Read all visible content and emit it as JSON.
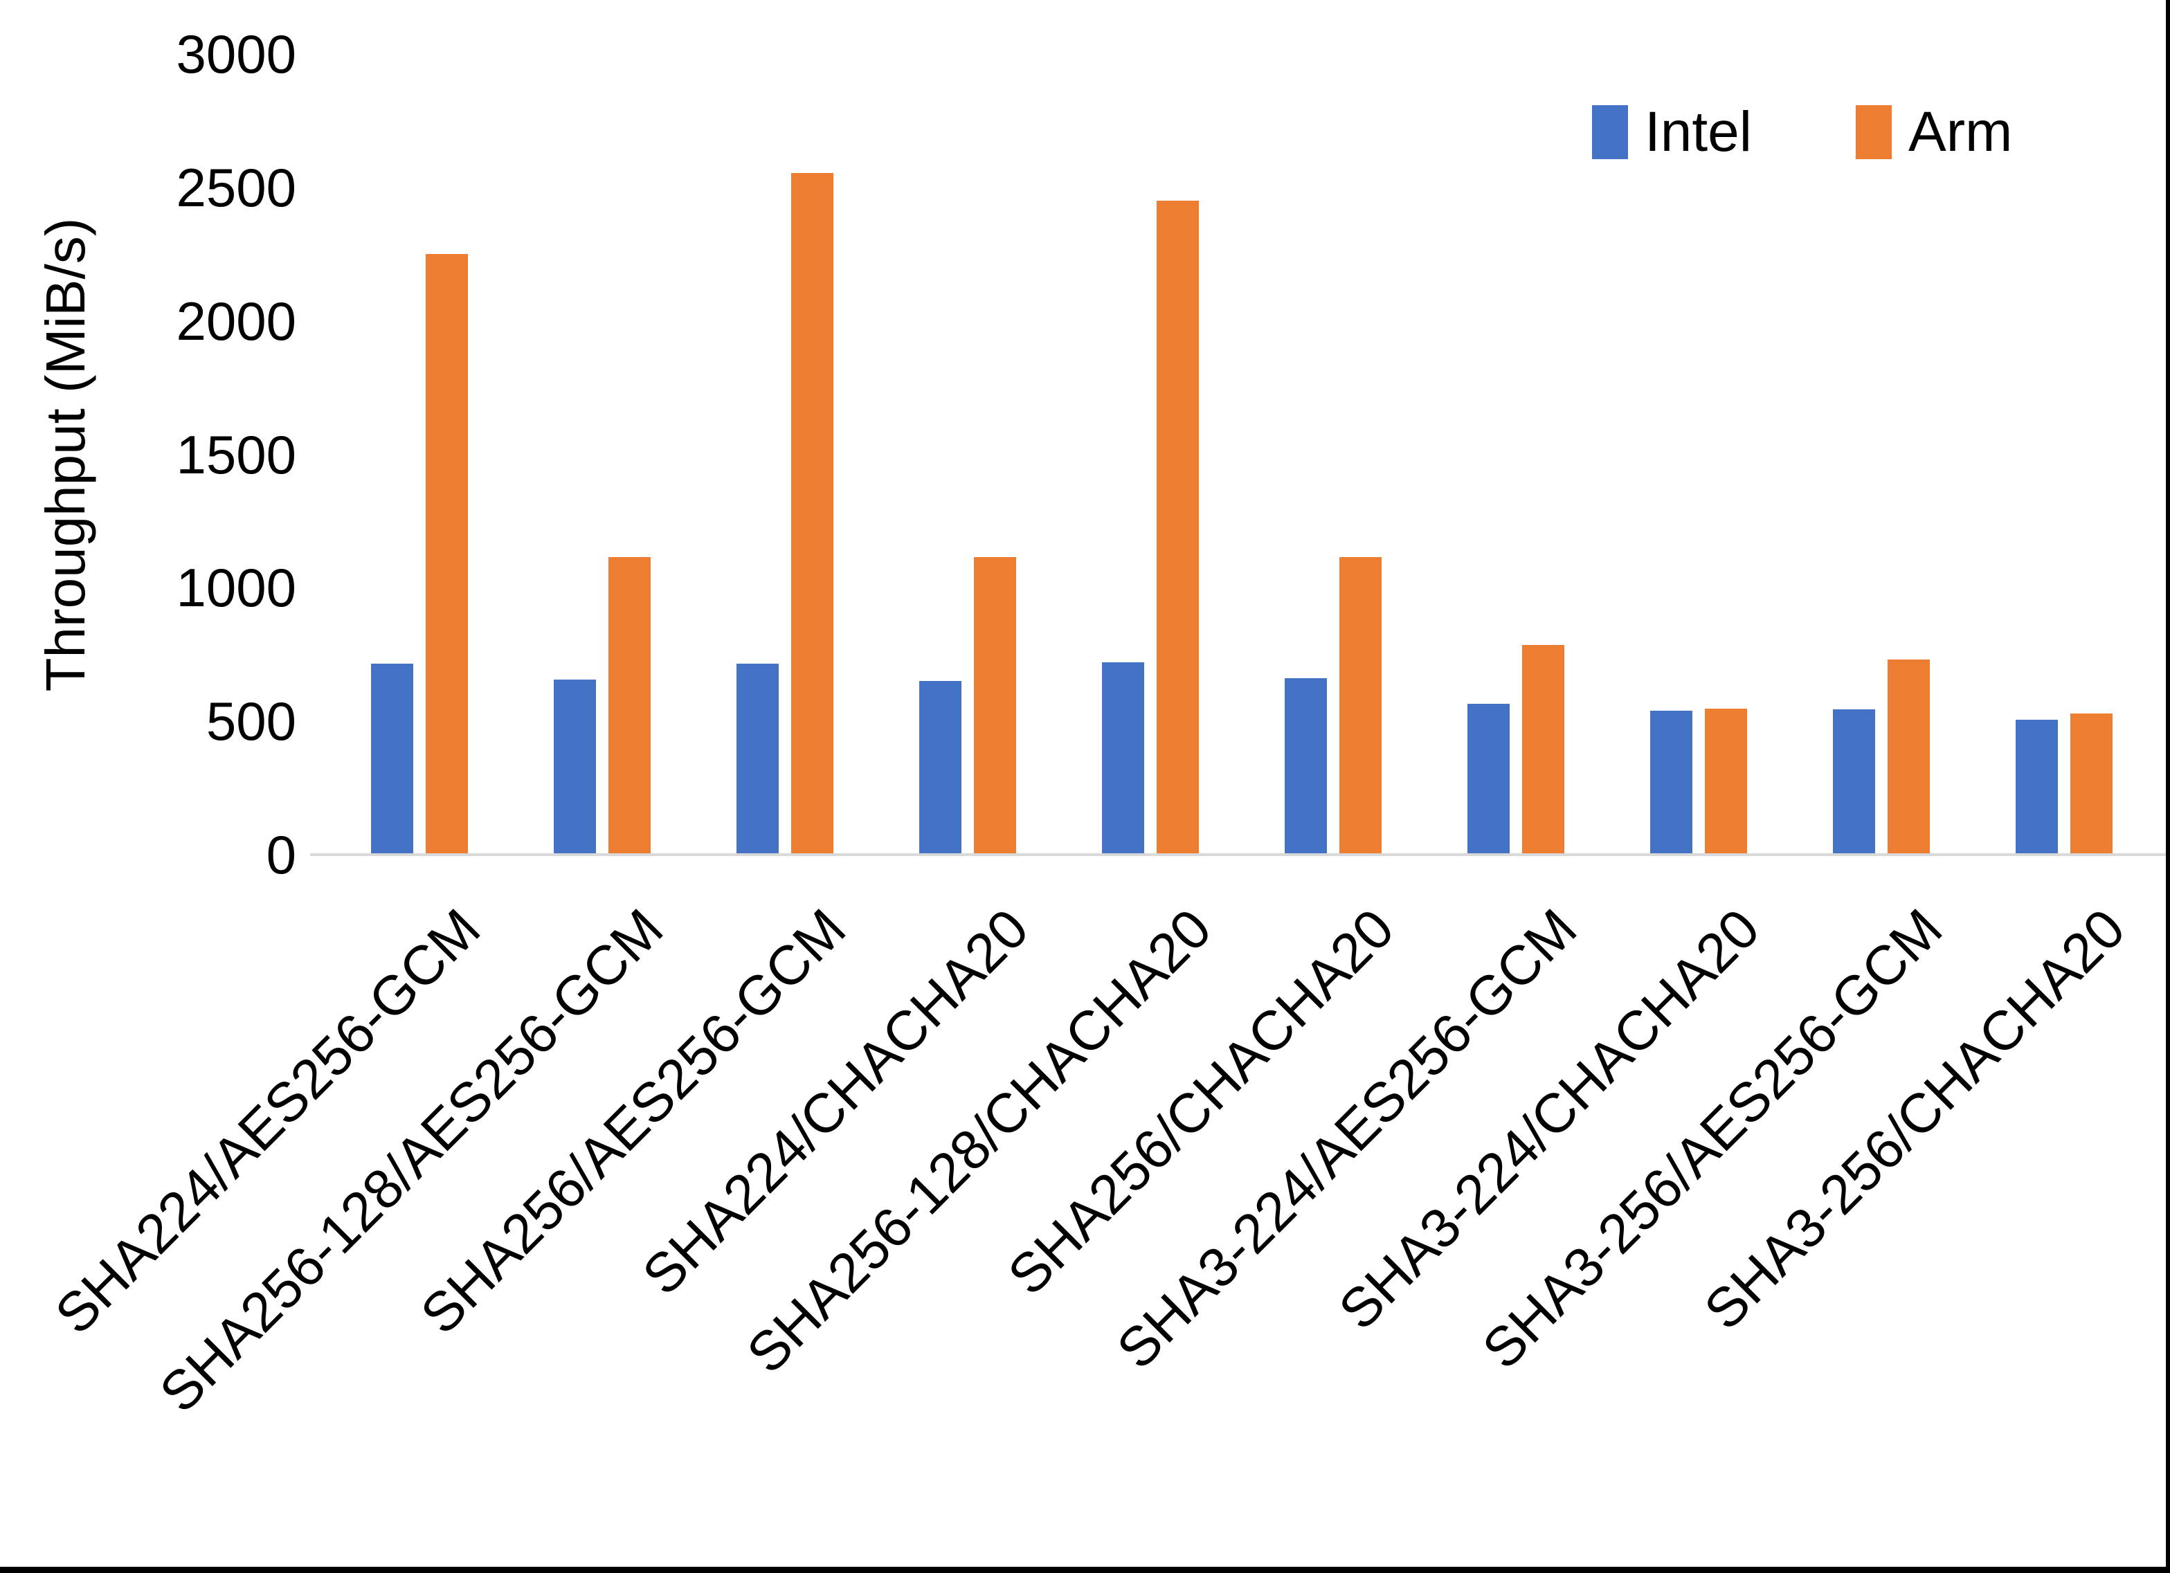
{
  "chart_data": {
    "type": "bar",
    "title": "",
    "xlabel": "",
    "ylabel": "Throughput (MiB/s)",
    "ylim": [
      0,
      3000
    ],
    "yticks": [
      0,
      500,
      1000,
      1500,
      2000,
      2500,
      3000
    ],
    "grid": false,
    "legend_position": "top-right",
    "categories": [
      "SHA224/AES256-GCM",
      "SHA256-128/AES256-GCM",
      "SHA256/AES256-GCM",
      "SHA224/CHACHA20",
      "SHA256-128/CHACHA20",
      "SHA256/CHACHA20",
      "SHA3-224/AES256-GCM",
      "SHA3-224/CHACHA20",
      "SHA3-256/AES256-GCM",
      "SHA3-256/CHACHA20"
    ],
    "series": [
      {
        "name": "Intel",
        "color": "#4472C4",
        "values": [
          715,
          655,
          715,
          650,
          720,
          660,
          565,
          540,
          545,
          505
        ]
      },
      {
        "name": "Arm",
        "color": "#ED7D31",
        "values": [
          2250,
          1115,
          2555,
          1115,
          2450,
          1115,
          785,
          548,
          730,
          530
        ]
      }
    ]
  },
  "colors": {
    "axis_line": "#d9d9d9",
    "text": "#000000",
    "frame_border": "#000000",
    "background": "#ffffff"
  }
}
